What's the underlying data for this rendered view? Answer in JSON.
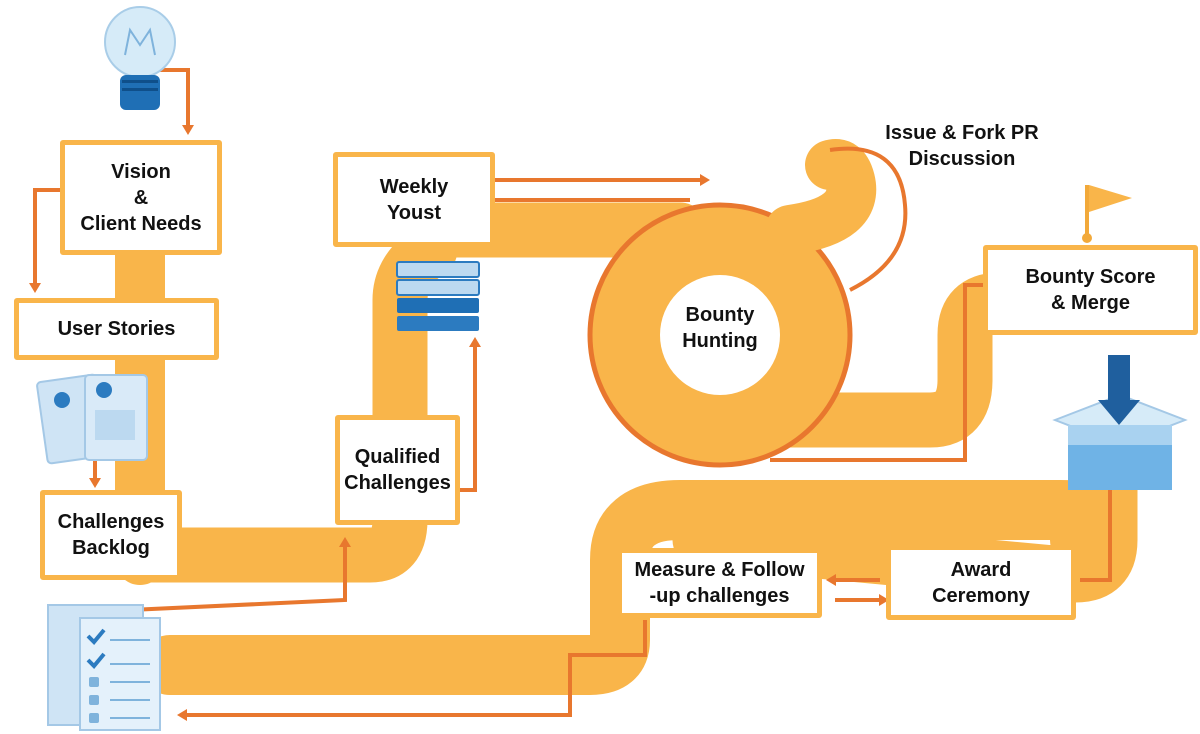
{
  "colors": {
    "path": "#f9b54a",
    "path_dark": "#f2a93a",
    "arrow": "#e8772e",
    "bulb_blue": "#1f6fb5",
    "icon_light": "#bcd9f0",
    "icon_blue": "#5ba7de",
    "text": "#111111"
  },
  "nodes": {
    "vision": [
      "Vision",
      "&",
      "Client Needs"
    ],
    "user_stories": [
      "User Stories"
    ],
    "backlog": [
      "Challenges",
      "Backlog"
    ],
    "qualified": [
      "Qualified",
      "Challenges"
    ],
    "weekly": [
      "Weekly",
      "Youst"
    ],
    "bounty_hunting": [
      "Bounty",
      "Hunting"
    ],
    "issue_fork": [
      "Issue & Fork PR",
      "Discussion"
    ],
    "bounty_score": [
      "Bounty Score",
      "& Merge"
    ],
    "award": [
      "Award",
      "Ceremony"
    ],
    "measure": [
      "Measure & Follow",
      "-up challenges"
    ]
  },
  "icons": [
    "lightbulb-icon",
    "user-cards-icon",
    "task-stack-icon",
    "checklist-icon",
    "flag-icon",
    "box-icon",
    "down-arrow-icon"
  ]
}
